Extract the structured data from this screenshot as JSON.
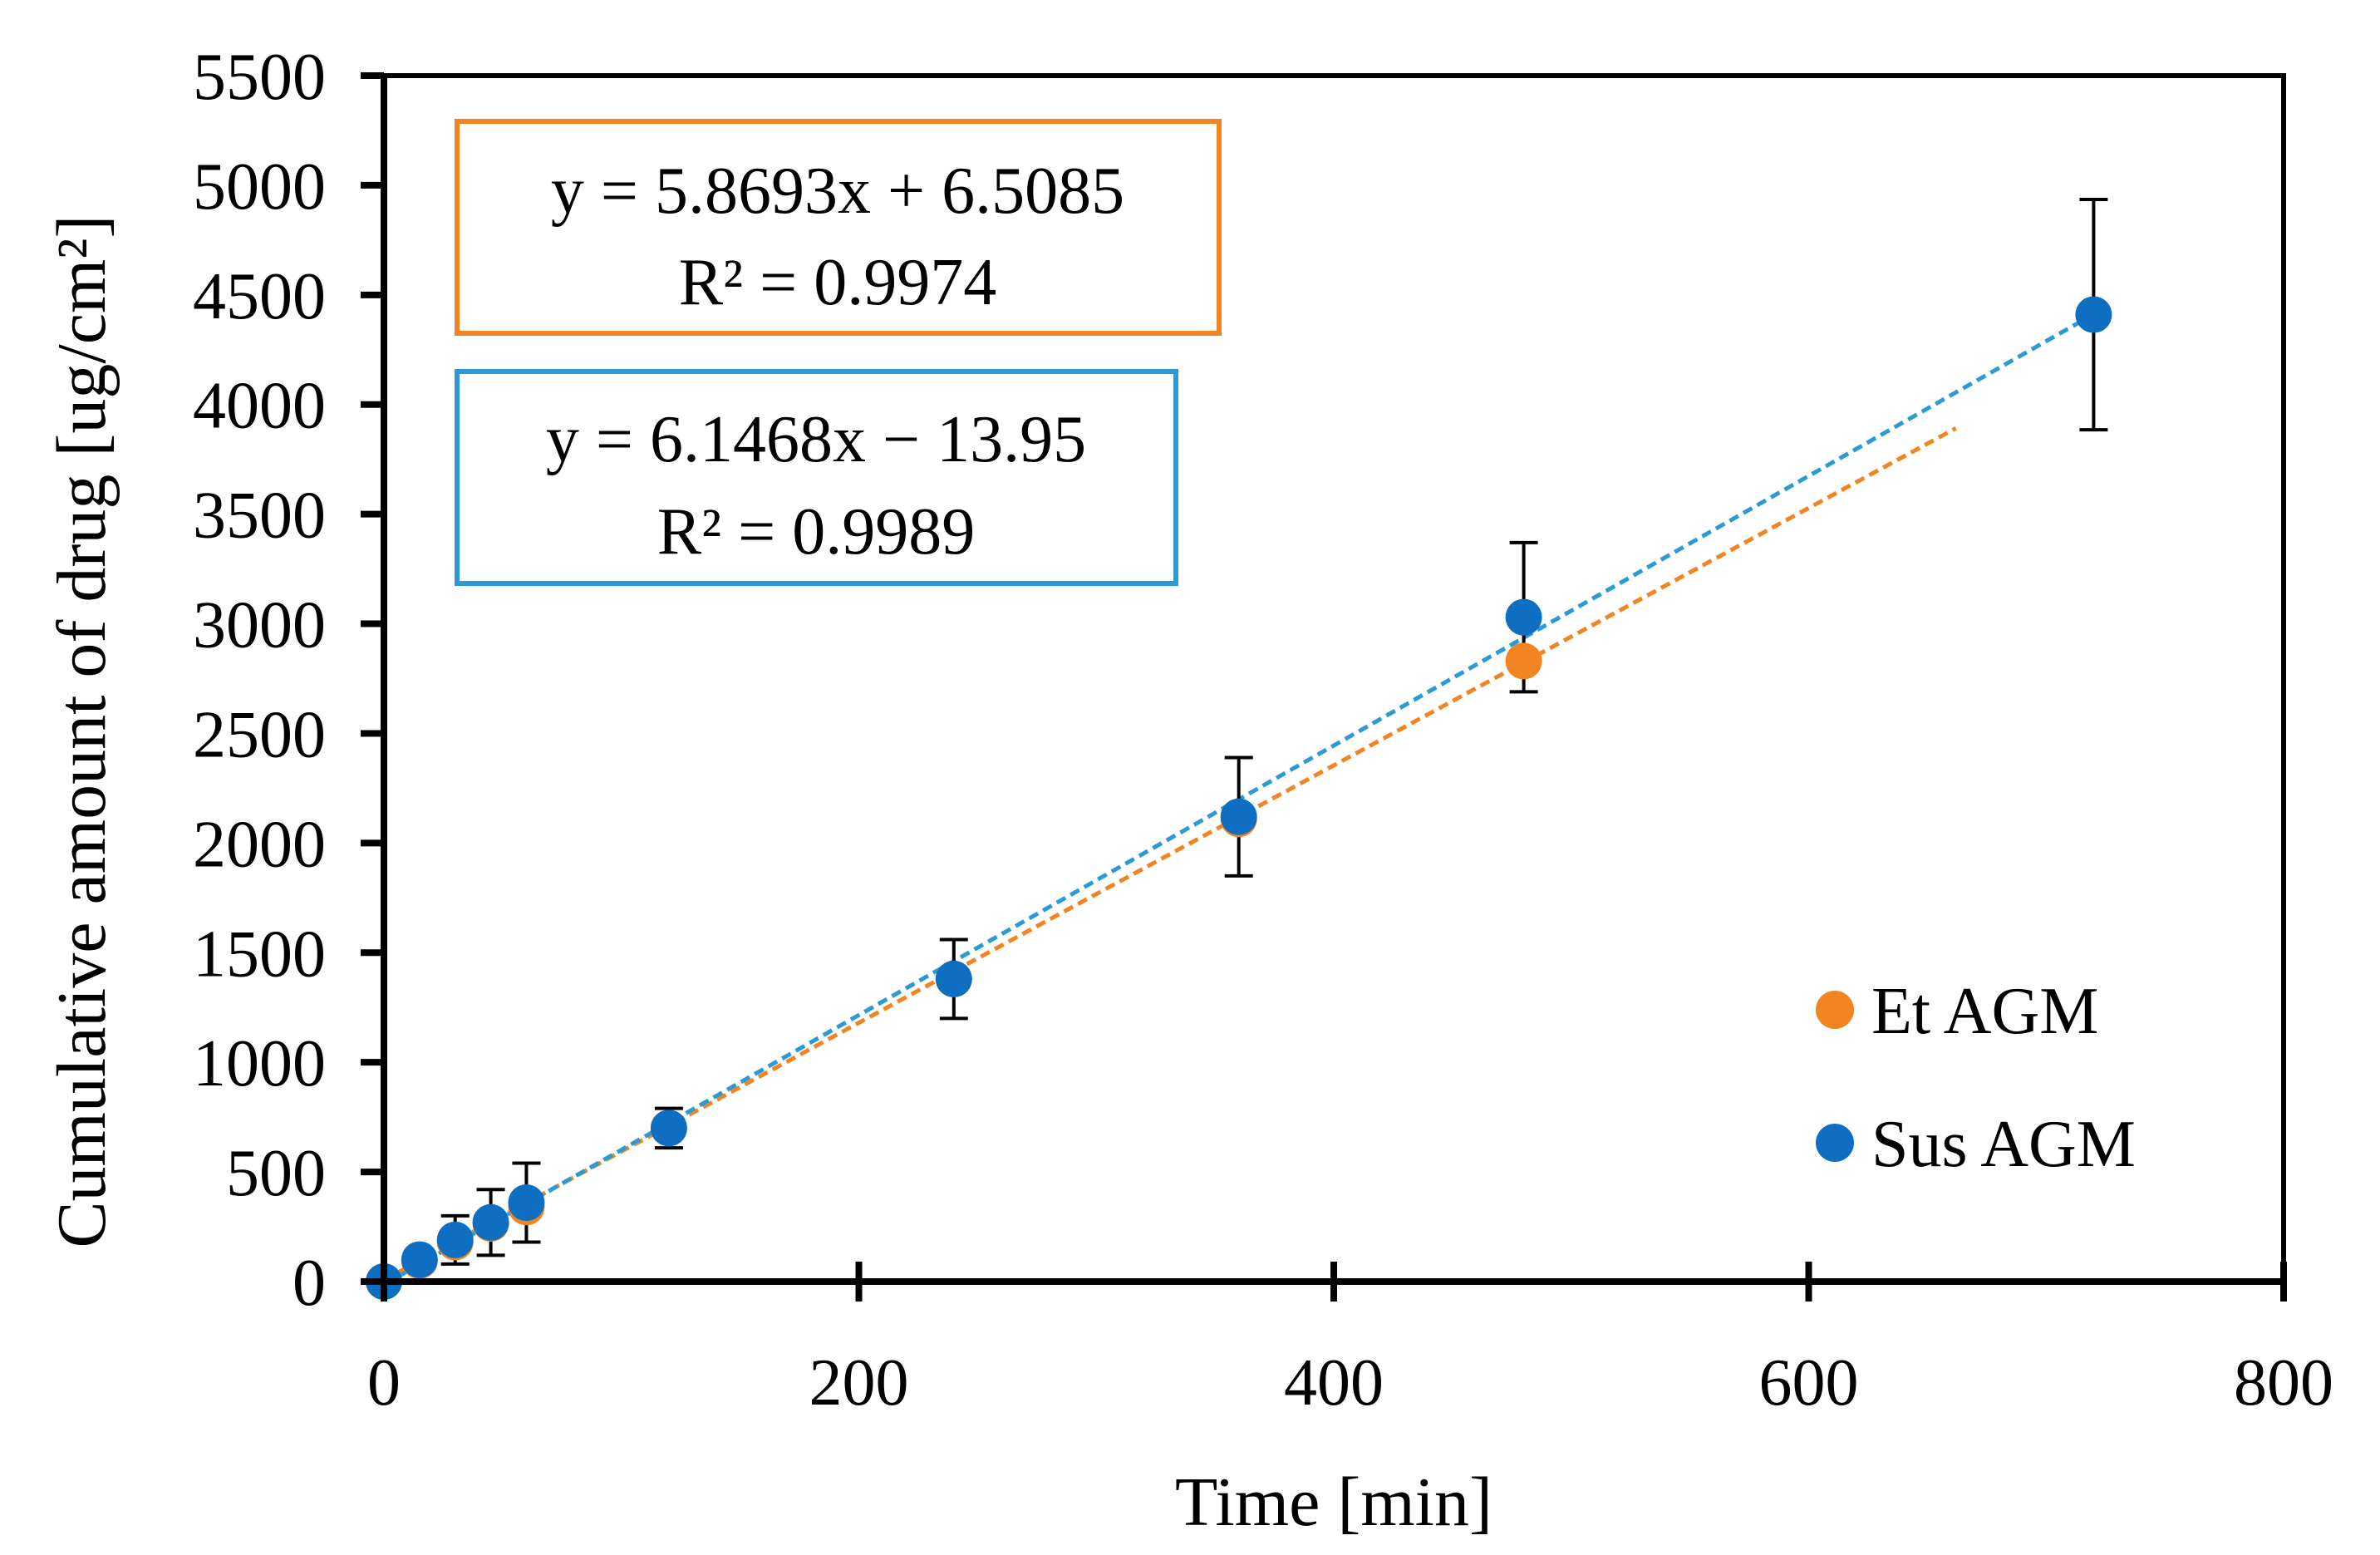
{
  "chart_data": {
    "type": "scatter",
    "title": "",
    "xlabel": "Time [min]",
    "ylabel": "Cumulative amount of drug [ug/cm²]",
    "xlim": [
      0,
      800
    ],
    "ylim": [
      0,
      5500
    ],
    "x_ticks": [
      0,
      200,
      400,
      600,
      800
    ],
    "x_tick_labels": [
      "0",
      "200",
      "400",
      "600",
      "800"
    ],
    "y_ticks": [
      0,
      500,
      1000,
      1500,
      2000,
      2500,
      3000,
      3500,
      4000,
      4500,
      5000,
      5500
    ],
    "y_tick_labels": [
      "0",
      "500",
      "1000",
      "1500",
      "2000",
      "2500",
      "3000",
      "3500",
      "4000",
      "4500",
      "5000",
      "5500"
    ],
    "grid": false,
    "legend_position": "bottom-right",
    "series": [
      {
        "name": "Et AGM",
        "color": "#F28522",
        "x": [
          0,
          15,
          30,
          45,
          60,
          120,
          240,
          360,
          480
        ],
        "y": [
          0,
          95,
          180,
          265,
          340,
          700,
          1380,
          2110,
          2830
        ],
        "error": [
          0,
          0,
          0,
          0,
          0,
          0,
          0,
          0,
          0
        ],
        "trendline": {
          "slope": 5.8693,
          "intercept": 6.5085,
          "x_range": [
            0,
            662
          ],
          "equation": "y = 5.8693x + 6.5085",
          "r2": "R² = 0.9974"
        }
      },
      {
        "name": "Sus AGM",
        "color": "#0D6EC2",
        "trend_color": "#2C9AD4",
        "x": [
          0,
          15,
          30,
          45,
          60,
          120,
          240,
          360,
          480,
          720
        ],
        "y": [
          0,
          100,
          190,
          270,
          360,
          700,
          1380,
          2120,
          3030,
          4410
        ],
        "error": [
          0,
          25,
          110,
          150,
          180,
          90,
          180,
          270,
          340,
          525
        ],
        "trendline": {
          "slope": 6.1468,
          "intercept": -13.95,
          "x_range": [
            0,
            720
          ],
          "equation": "y = 6.1468x − 13.95",
          "r2": "R² = 0.9989"
        }
      }
    ]
  }
}
